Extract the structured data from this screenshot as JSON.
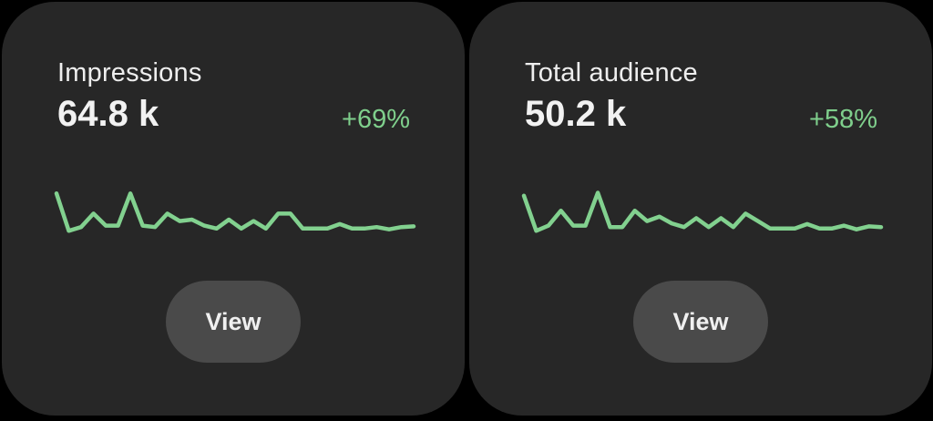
{
  "cards": [
    {
      "title": "Impressions",
      "value": "64.8 k",
      "change": "+69%",
      "button_label": "View",
      "trend": [
        85,
        35,
        40,
        58,
        42,
        42,
        85,
        42,
        40,
        58,
        48,
        50,
        42,
        38,
        50,
        38,
        48,
        38,
        58,
        58,
        38,
        38,
        38,
        44,
        38,
        38,
        40,
        37,
        40,
        41
      ]
    },
    {
      "title": "Total audience",
      "value": "50.2 k",
      "change": "+58%",
      "button_label": "View",
      "trend": [
        82,
        35,
        42,
        62,
        42,
        42,
        86,
        40,
        40,
        62,
        48,
        54,
        45,
        40,
        52,
        40,
        52,
        40,
        58,
        48,
        38,
        38,
        38,
        44,
        38,
        38,
        42,
        37,
        41,
        40
      ]
    }
  ],
  "colors": {
    "card_background": "#272727",
    "accent_green": "#82d18f",
    "button_background": "#4a4a4a"
  }
}
